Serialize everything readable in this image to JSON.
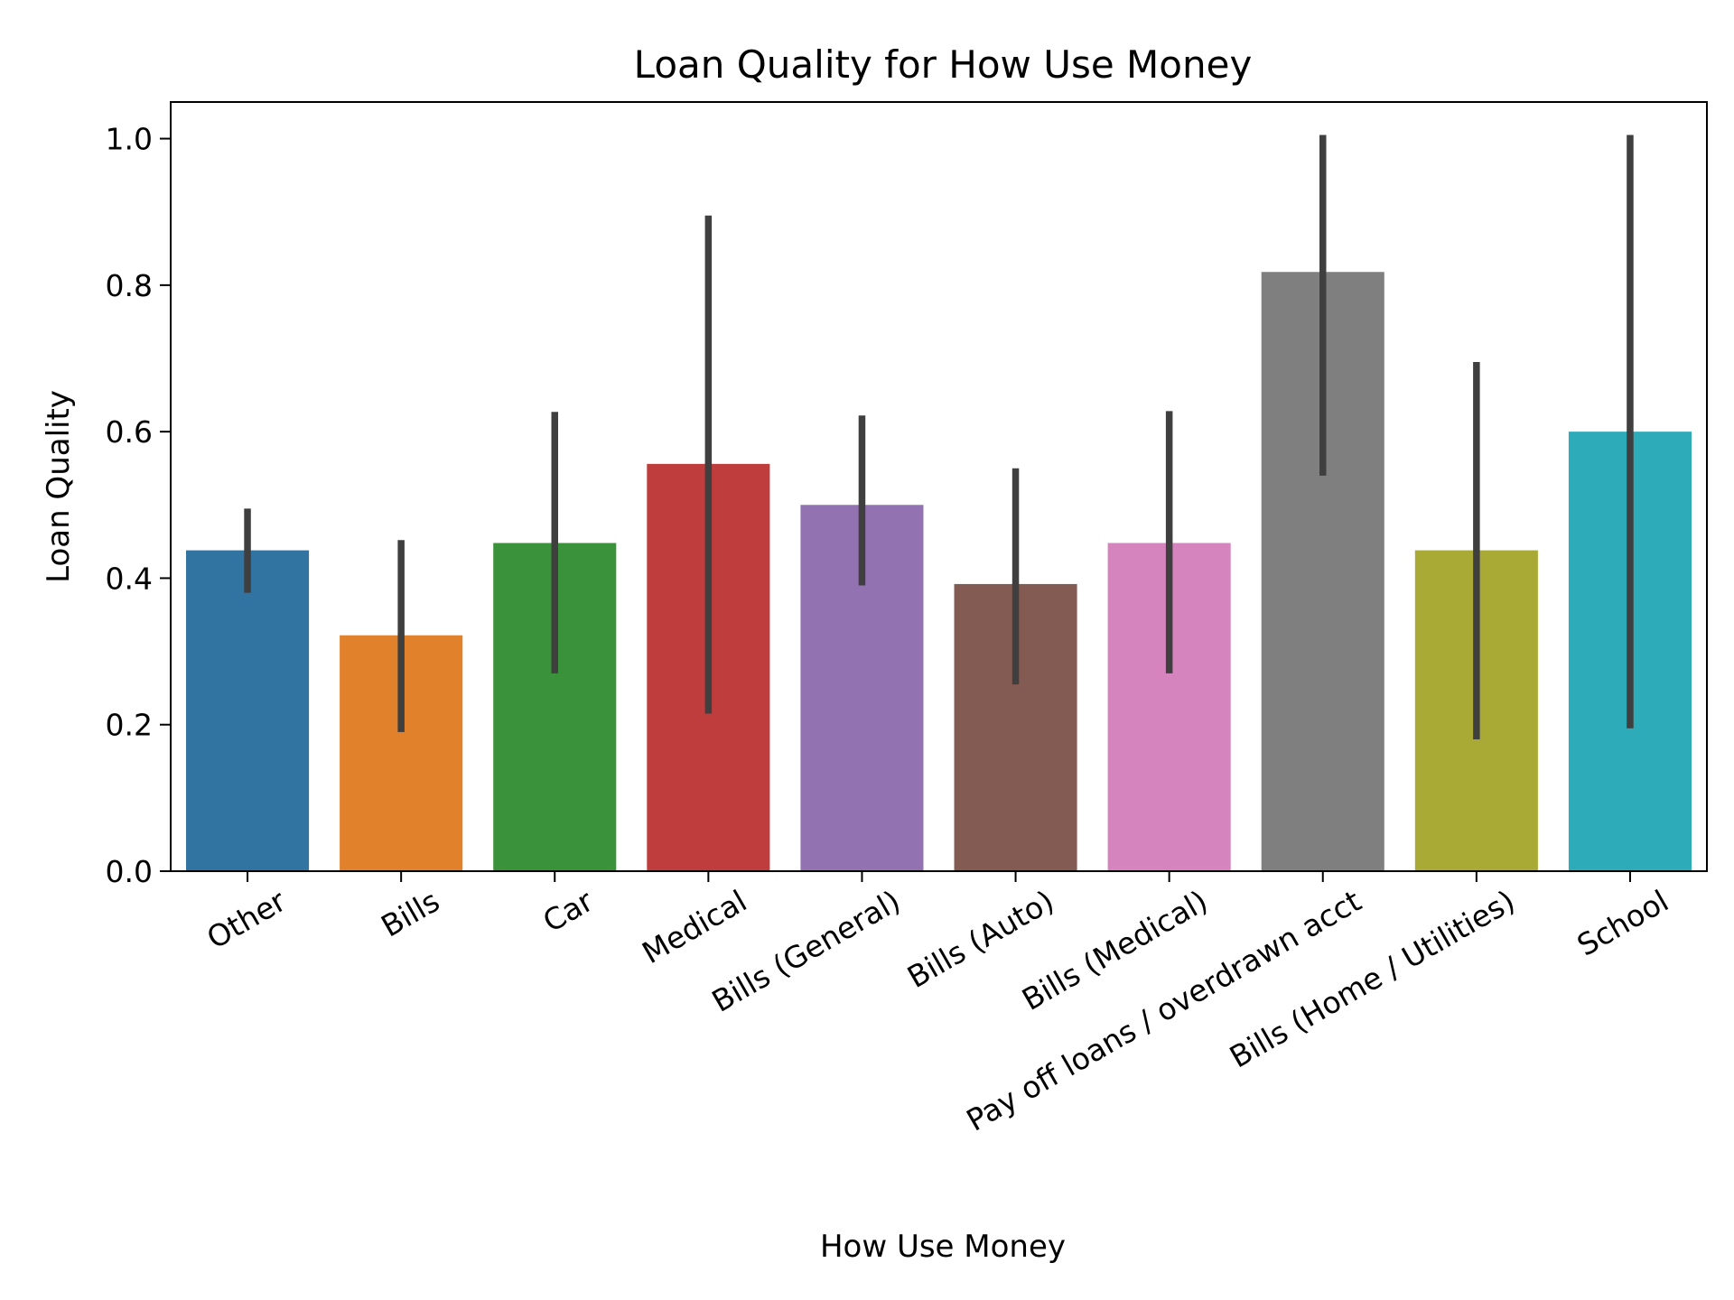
{
  "chart_data": {
    "type": "bar",
    "title": "Loan Quality for How Use Money",
    "xlabel": "How Use Money",
    "ylabel": "Loan Quality",
    "ylim": [
      0,
      1.05
    ],
    "yticks": [
      0.0,
      0.2,
      0.4,
      0.6,
      0.8,
      1.0
    ],
    "ytick_labels": [
      "0.0",
      "0.2",
      "0.4",
      "0.6",
      "0.8",
      "1.0"
    ],
    "grid": false,
    "legend": "none",
    "categories": [
      "Other",
      "Bills",
      "Car",
      "Medical",
      "Bills (General)",
      "Bills (Auto)",
      "Bills (Medical)",
      "Pay off loans / overdrawn acct",
      "Bills (Home / Utilities)",
      "School"
    ],
    "values": [
      0.438,
      0.322,
      0.448,
      0.556,
      0.5,
      0.392,
      0.448,
      0.818,
      0.438,
      0.6
    ],
    "error_low": [
      0.38,
      0.19,
      0.27,
      0.215,
      0.39,
      0.255,
      0.27,
      0.54,
      0.18,
      0.195
    ],
    "error_high": [
      0.495,
      0.452,
      0.627,
      0.895,
      0.622,
      0.55,
      0.628,
      1.005,
      0.695,
      1.005
    ],
    "colors": [
      "#3274a1",
      "#e1812c",
      "#3a923a",
      "#c03d3e",
      "#9372b2",
      "#845b53",
      "#d684bd",
      "#7f7f7f",
      "#a9aa35",
      "#2eabb8"
    ],
    "error_color": "#3f3f3f"
  }
}
